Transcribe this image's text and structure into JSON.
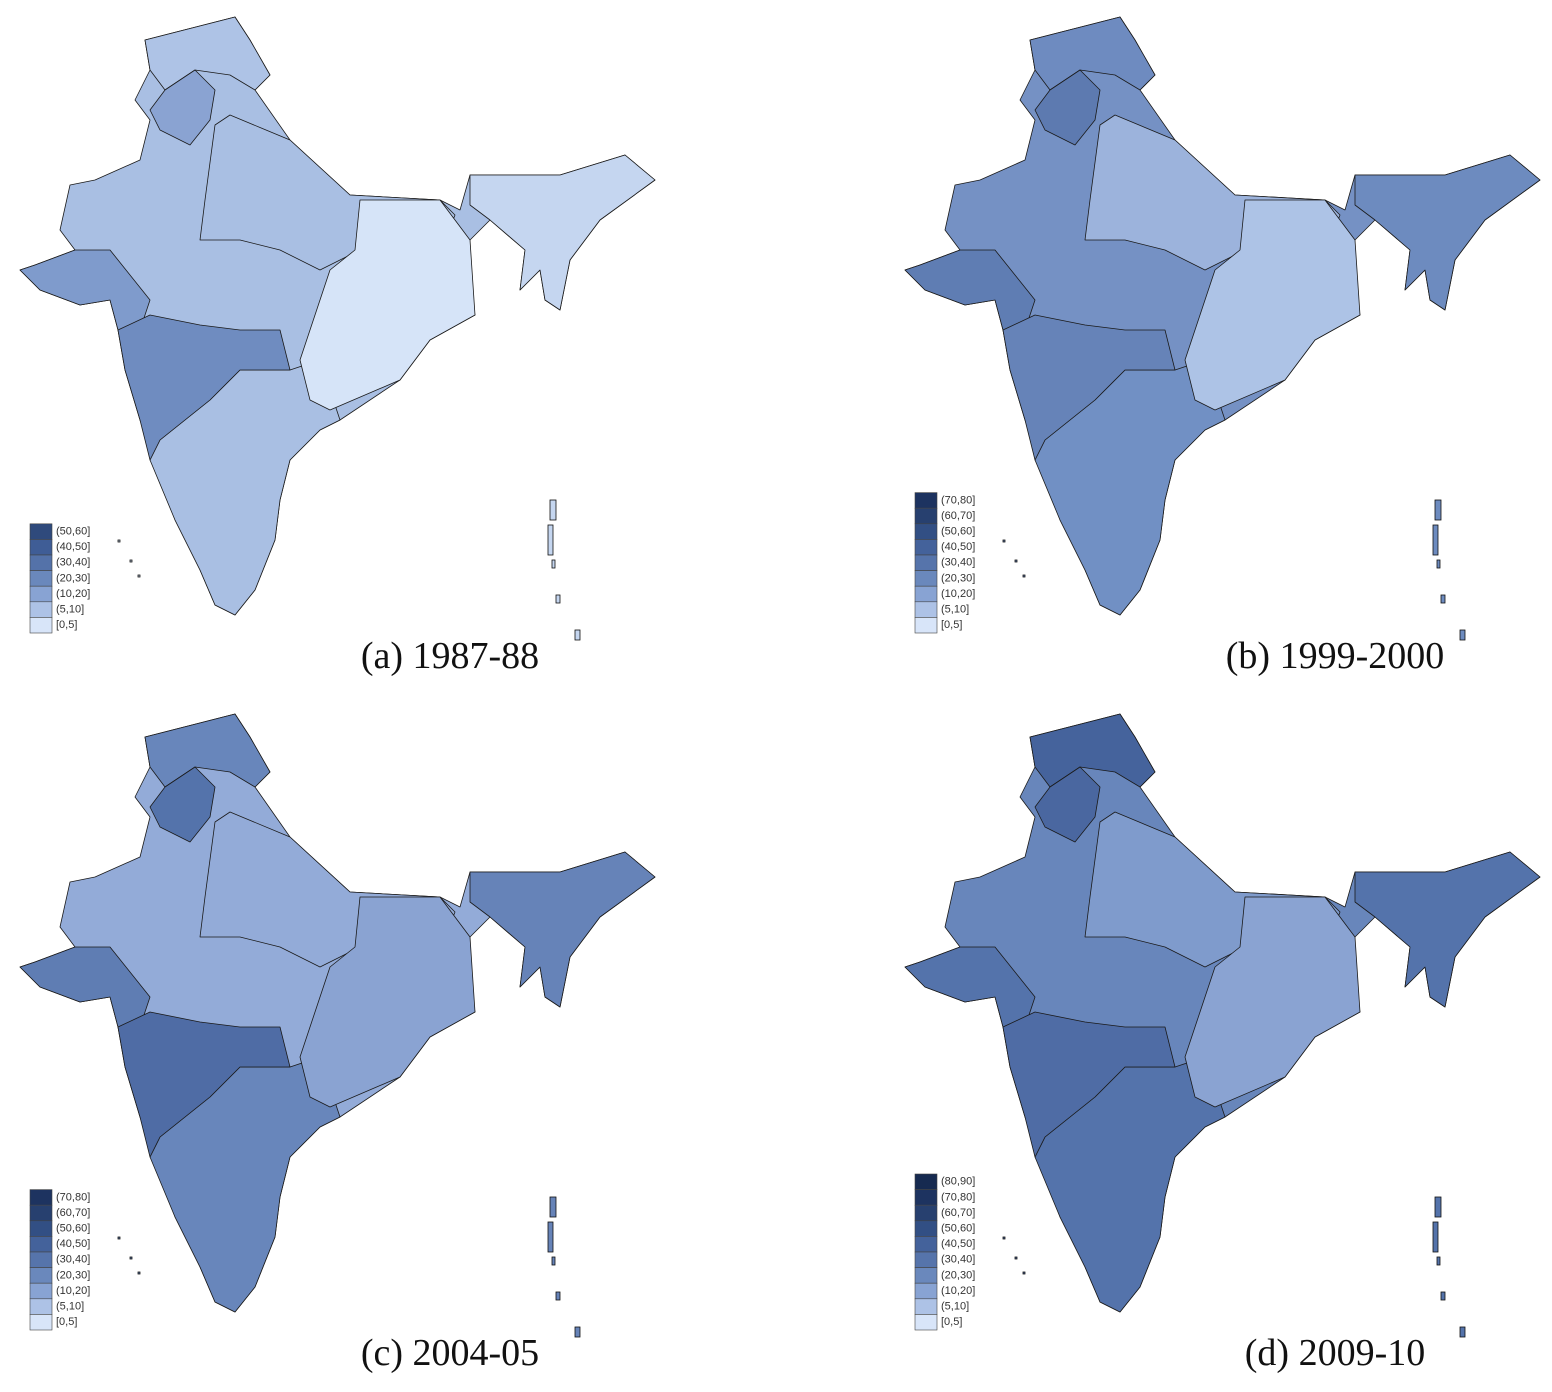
{
  "panels": [
    {
      "caption": "(a) 1987-88",
      "legend": [
        {
          "label": "(50,60]",
          "color": "#2f4a7c"
        },
        {
          "label": "(40,50]",
          "color": "#3f5d96"
        },
        {
          "label": "(30,40]",
          "color": "#5472a9"
        },
        {
          "label": "(20,30]",
          "color": "#6a88bc"
        },
        {
          "label": "(10,20]",
          "color": "#88a3d3"
        },
        {
          "label": "(5,10]",
          "color": "#adc2e6"
        },
        {
          "label": "[0,5]",
          "color": "#d8e5f9"
        }
      ]
    },
    {
      "caption": "(b) 1999-2000",
      "legend": [
        {
          "label": "(70,80]",
          "color": "#1d3360"
        },
        {
          "label": "(60,70]",
          "color": "#27406f"
        },
        {
          "label": "(50,60]",
          "color": "#324f84"
        },
        {
          "label": "(40,50]",
          "color": "#44629b"
        },
        {
          "label": "(30,40]",
          "color": "#5674ab"
        },
        {
          "label": "(20,30]",
          "color": "#6a88bc"
        },
        {
          "label": "(10,20]",
          "color": "#88a3d3"
        },
        {
          "label": "(5,10]",
          "color": "#adc2e6"
        },
        {
          "label": "[0,5]",
          "color": "#d8e5f9"
        }
      ]
    },
    {
      "caption": "(c) 2004-05",
      "legend": [
        {
          "label": "(70,80]",
          "color": "#1d3360"
        },
        {
          "label": "(60,70]",
          "color": "#27406f"
        },
        {
          "label": "(50,60]",
          "color": "#324f84"
        },
        {
          "label": "(40,50]",
          "color": "#44629b"
        },
        {
          "label": "(30,40]",
          "color": "#5674ab"
        },
        {
          "label": "(20,30]",
          "color": "#6a88bc"
        },
        {
          "label": "(10,20]",
          "color": "#88a3d3"
        },
        {
          "label": "(5,10]",
          "color": "#adc2e6"
        },
        {
          "label": "[0,5]",
          "color": "#d8e5f9"
        }
      ]
    },
    {
      "caption": "(d) 2009-10",
      "legend": [
        {
          "label": "(80,90]",
          "color": "#162a50"
        },
        {
          "label": "(70,80]",
          "color": "#1d3360"
        },
        {
          "label": "(60,70]",
          "color": "#27406f"
        },
        {
          "label": "(50,60]",
          "color": "#324f84"
        },
        {
          "label": "(40,50]",
          "color": "#44629b"
        },
        {
          "label": "(30,40]",
          "color": "#5674ab"
        },
        {
          "label": "(20,30]",
          "color": "#6a88bc"
        },
        {
          "label": "(10,20]",
          "color": "#88a3d3"
        },
        {
          "label": "(5,10]",
          "color": "#adc2e6"
        },
        {
          "label": "[0,5]",
          "color": "#d8e5f9"
        }
      ]
    }
  ]
}
